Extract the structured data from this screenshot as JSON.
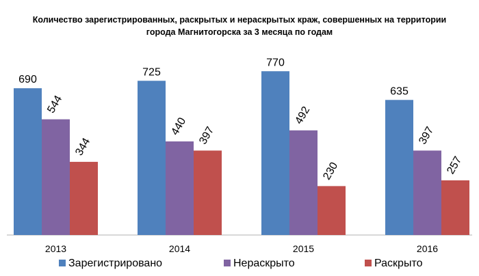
{
  "chart_data": {
    "type": "bar",
    "title": "Количество зарегистрированных,  раскрытых  и нераскрытых  краж,  совершенных  на территории города Магнитогорска  за 3 месяца по годам",
    "categories": [
      "2013",
      "2014",
      "2015",
      "2016"
    ],
    "series": [
      {
        "name": "Зарегистрировано",
        "color": "#4f81bd",
        "values": [
          690,
          725,
          770,
          635
        ]
      },
      {
        "name": "Нераскрыто",
        "color": "#8064a2",
        "values": [
          544,
          440,
          492,
          397
        ]
      },
      {
        "name": "Раскрыто",
        "color": "#c0504d",
        "values": [
          344,
          397,
          230,
          257
        ]
      }
    ],
    "ylim": [
      0,
      880
    ],
    "grid": false,
    "legend_position": "bottom",
    "xlabel": "",
    "ylabel": ""
  }
}
